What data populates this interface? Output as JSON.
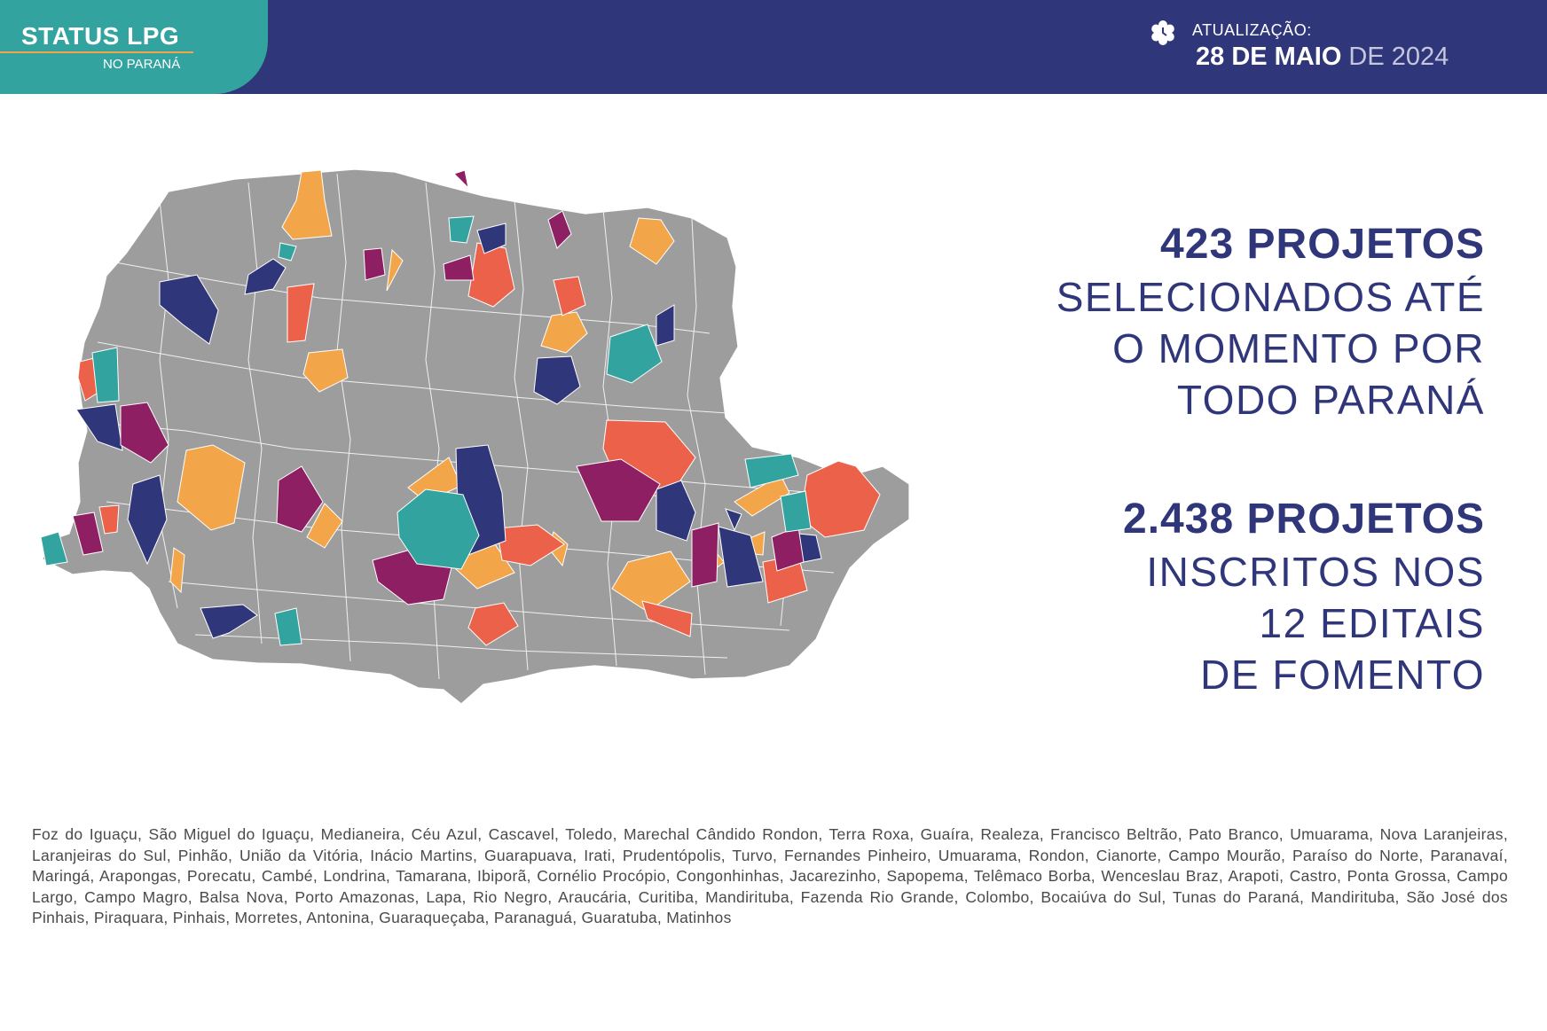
{
  "header": {
    "title": "STATUS LPG",
    "subtitle": "NO PARANÁ",
    "update_label": "ATUALIZAÇÃO:",
    "update_date_bold": "28 DE MAIO",
    "update_date_light": " DE 2024",
    "update_icon": "calendar-flower-icon"
  },
  "stats": [
    {
      "number": "423 PROJETOS",
      "lines": [
        "SELECIONADOS ATÉ",
        "O MOMENTO POR",
        "TODO PARANÁ"
      ]
    },
    {
      "number": "2.438 PROJETOS",
      "lines": [
        "INSCRITOS NOS",
        "12 EDITAIS",
        "DE FOMENTO"
      ]
    }
  ],
  "cities_text": "Foz do Iguaçu, São Miguel do Iguaçu, Medianeira, Céu Azul, Cascavel, Toledo, Marechal Cândido Rondon, Terra Roxa, Guaíra, Realeza, Francisco Beltrão, Pato Branco, Umuarama, Nova Laranjeiras, Laranjeiras do Sul, Pinhão, União da Vitória, Inácio Martins, Guarapuava, Irati, Prudentópolis, Turvo, Fernandes Pinheiro, Umuarama, Rondon, Cianorte, Campo Mourão, Paraíso do Norte, Paranavaí, Maringá, Arapongas, Porecatu, Cambé, Londrina, Tamarana, Ibiporã, Cornélio Procópio, Congonhinhas, Jacarezinho, Sapopema, Telêmaco Borba, Wenceslau Braz, Arapoti, Castro, Ponta Grossa, Campo Largo, Campo Magro, Balsa Nova, Porto Amazonas, Lapa, Rio Negro, Araucária, Curitiba, Mandirituba, Fazenda Rio Grande, Colombo, Bocaiúva do Sul, Tunas do Paraná, Mandirituba, São José dos Pinhais, Piraquara, Pinhais, Morretes, Antonina, Guaraqueçaba, Paranaguá, Guaratuba, Matinhos",
  "colors": {
    "navy": "#30367a",
    "teal": "#32a39f",
    "orange": "#f3a649",
    "coral": "#ec614a",
    "purple": "#8e1f63",
    "gray": "#9d9d9d"
  }
}
